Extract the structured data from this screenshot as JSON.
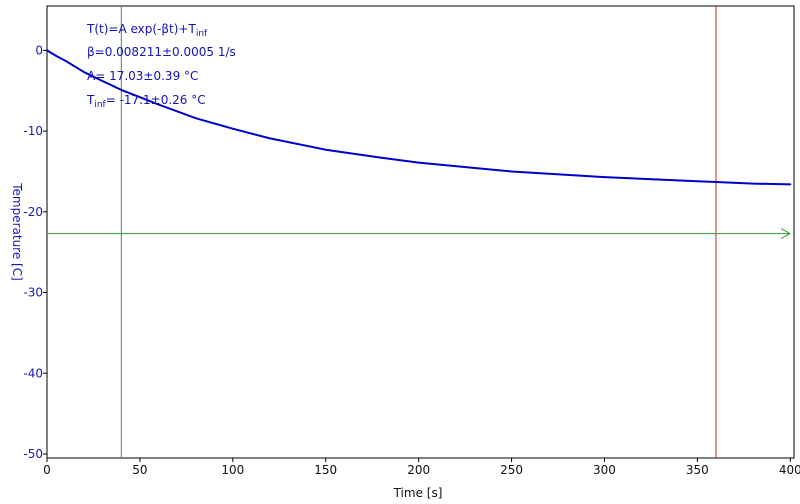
{
  "chart_data": {
    "type": "line",
    "xlabel": "Time [s]",
    "ylabel": "Temperature [C]",
    "xlim": [
      0,
      402
    ],
    "ylim": [
      -50.5,
      5.5
    ],
    "x_ticks": [
      0,
      50,
      100,
      150,
      200,
      250,
      300,
      350,
      400
    ],
    "y_ticks": [
      0,
      -10,
      -20,
      -30,
      -40,
      -50
    ],
    "grid": false,
    "series": [
      {
        "color": "#0000c8",
        "x": [
          0,
          5,
          10,
          20,
          30,
          40,
          50,
          60,
          80,
          100,
          120,
          150,
          180,
          200,
          250,
          300,
          350,
          360,
          380,
          400
        ],
        "values": [
          0.0,
          -0.7,
          -1.3,
          -2.7,
          -3.8,
          -4.9,
          -5.8,
          -6.7,
          -8.4,
          -9.7,
          -10.9,
          -12.3,
          -13.3,
          -13.9,
          -15.0,
          -15.7,
          -16.2,
          -16.3,
          -16.5,
          -16.6
        ]
      }
    ],
    "annotations": {
      "fit_model": {
        "prefix": "T(t)=A exp(-βt)+T",
        "sub": "inf"
      },
      "beta_text": "β=0.008211±0.0005 1/s",
      "a_text": "A= 17.03±0.39 °C",
      "tinf": {
        "prefix": "T",
        "sub": "inf",
        "suffix": "= -17.1±0.26 °C"
      }
    },
    "cursors": {
      "vertical_green_x": 40,
      "vertical_red_x": 360,
      "horizontal_green_y": -22.7
    }
  },
  "colors": {
    "data_line": "#0000c8",
    "text_blue": "#1212b8",
    "cursor_green": "#2ea02e",
    "cursor_red": "#cc2222",
    "axis": "#000000"
  }
}
